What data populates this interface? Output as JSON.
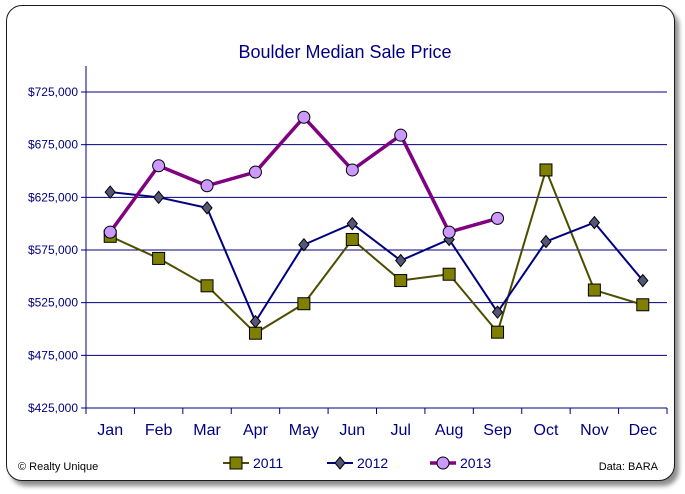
{
  "chart_data": {
    "type": "line",
    "title": "Boulder Median Sale Price",
    "xlabel": "",
    "ylabel": "",
    "categories": [
      "Jan",
      "Feb",
      "Mar",
      "Apr",
      "May",
      "Jun",
      "Jul",
      "Aug",
      "Sep",
      "Oct",
      "Nov",
      "Dec"
    ],
    "ylim": [
      425000,
      725000
    ],
    "yticks": [
      425000,
      475000,
      525000,
      575000,
      625000,
      675000,
      725000
    ],
    "ytick_labels": [
      "$425,000",
      "$475,000",
      "$525,000",
      "$575,000",
      "$625,000",
      "$675,000",
      "$725,000"
    ],
    "grid": "horizontal",
    "legend_position": "bottom",
    "series": [
      {
        "name": "2011",
        "color": "#4d4d00",
        "marker": "square",
        "marker_color": "#808000",
        "values": [
          588000,
          567000,
          541000,
          496000,
          524000,
          585000,
          546000,
          552000,
          497000,
          651000,
          537000,
          523000
        ]
      },
      {
        "name": "2012",
        "color": "#000080",
        "marker": "diamond",
        "marker_color": "#555577",
        "values": [
          630000,
          625000,
          615000,
          507000,
          580000,
          600000,
          565000,
          585000,
          516000,
          583000,
          601000,
          546000
        ]
      },
      {
        "name": "2013",
        "color": "#800080",
        "marker": "circle",
        "marker_color": "#cc99ff",
        "values": [
          592000,
          655000,
          636000,
          649000,
          701000,
          651000,
          684000,
          592000,
          605000,
          null,
          null,
          null
        ]
      }
    ]
  },
  "footer": {
    "copyright": "© Realty Unique",
    "source": "Data: BARA"
  }
}
